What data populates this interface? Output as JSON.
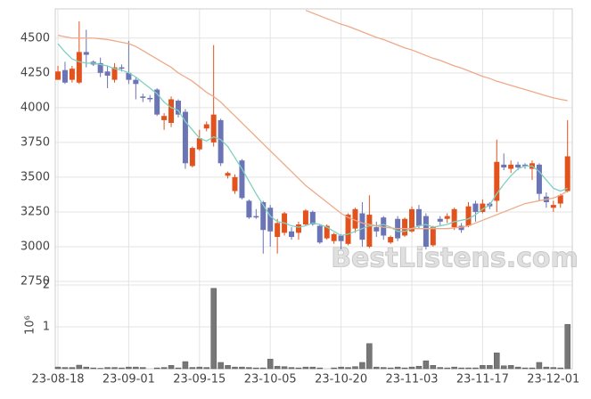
{
  "chart_data": {
    "type": "candlestick",
    "categories": [
      "23-08-18",
      null,
      null,
      null,
      null,
      null,
      null,
      null,
      null,
      null,
      "23-09-01",
      null,
      null,
      null,
      null,
      null,
      null,
      null,
      null,
      null,
      "23-09-15",
      null,
      null,
      null,
      null,
      null,
      null,
      null,
      null,
      null,
      "23-10-05",
      null,
      null,
      null,
      null,
      null,
      null,
      null,
      null,
      null,
      "23-10-20",
      null,
      null,
      null,
      null,
      null,
      null,
      null,
      null,
      null,
      "23-11-03",
      null,
      null,
      null,
      null,
      null,
      null,
      null,
      null,
      null,
      "23-11-17",
      null,
      null,
      null,
      null,
      null,
      null,
      null,
      null,
      null,
      "23-12-01",
      null,
      null
    ],
    "open": [
      4200,
      4270,
      4200,
      4180,
      4400,
      4330,
      4320,
      4260,
      4200,
      4290,
      4250,
      4200,
      4080,
      4070,
      4130,
      3910,
      3890,
      4050,
      3970,
      3580,
      3700,
      3850,
      3750,
      3910,
      3510,
      3400,
      3620,
      3330,
      3220,
      3320,
      3280,
      3070,
      3100,
      3110,
      3100,
      3160,
      3250,
      3150,
      3060,
      3040,
      3080,
      3020,
      3130,
      3240,
      3000,
      3140,
      3210,
      3030,
      3200,
      3080,
      3110,
      3270,
      3220,
      3010,
      3200,
      3200,
      3140,
      3150,
      3150,
      3310,
      3250,
      3310,
      3330,
      3590,
      3560,
      3590,
      3590,
      3560,
      3590,
      3360,
      3280,
      3310,
      3400
    ],
    "high": [
      4300,
      4330,
      4300,
      4620,
      4560,
      4340,
      4360,
      4300,
      4320,
      4310,
      4480,
      4220,
      4100,
      4090,
      4140,
      3960,
      4080,
      4060,
      3990,
      3720,
      3840,
      3900,
      4450,
      3920,
      3540,
      3520,
      3630,
      3340,
      3270,
      3330,
      3300,
      3200,
      3250,
      3140,
      3180,
      3270,
      3260,
      3160,
      3160,
      3100,
      3090,
      3240,
      3280,
      3320,
      3370,
      3180,
      3220,
      3080,
      3220,
      3210,
      3290,
      3300,
      3240,
      3150,
      3220,
      3240,
      3280,
      3170,
      3320,
      3330,
      3340,
      3320,
      3770,
      3670,
      3620,
      3610,
      3600,
      3620,
      3600,
      3390,
      3330,
      3380,
      3910
    ],
    "low": [
      4200,
      4170,
      4180,
      4170,
      4290,
      4300,
      4220,
      4140,
      4180,
      4260,
      4170,
      4060,
      4040,
      4040,
      3940,
      3840,
      3860,
      3930,
      3560,
      3570,
      3690,
      3830,
      3720,
      3580,
      3490,
      3380,
      3340,
      3200,
      3200,
      2950,
      3000,
      2950,
      3080,
      3050,
      3050,
      3150,
      3150,
      3020,
      3050,
      3020,
      2980,
      3010,
      3100,
      3000,
      2990,
      3070,
      3050,
      3020,
      3040,
      3070,
      3100,
      3130,
      2980,
      3000,
      3150,
      3170,
      3120,
      3100,
      3140,
      3180,
      3240,
      3270,
      3250,
      3550,
      3530,
      3550,
      3560,
      3480,
      3330,
      3280,
      3250,
      3280,
      3390
    ],
    "close": [
      4260,
      4180,
      4280,
      4400,
      4380,
      4310,
      4250,
      4230,
      4290,
      4280,
      4200,
      4170,
      4070,
      4060,
      3950,
      3940,
      4060,
      3950,
      3600,
      3710,
      3780,
      3880,
      3950,
      3600,
      3530,
      3500,
      3350,
      3210,
      3210,
      3120,
      3110,
      3170,
      3240,
      3070,
      3160,
      3260,
      3160,
      3030,
      3150,
      3090,
      3040,
      3230,
      3270,
      3050,
      3230,
      3110,
      3080,
      3070,
      3060,
      3200,
      3270,
      3150,
      3000,
      3140,
      3180,
      3220,
      3270,
      3120,
      3290,
      3250,
      3310,
      3290,
      3610,
      3570,
      3590,
      3570,
      3580,
      3600,
      3380,
      3320,
      3300,
      3370,
      3650
    ],
    "up_color": "#e2521d",
    "down_color": "#6b74b4",
    "lines": [
      {
        "color": "#7fd1c0",
        "values": [
          4460,
          4400,
          4350,
          4330,
          4320,
          4320,
          4310,
          4300,
          4280,
          4270,
          4250,
          4220,
          4180,
          4140,
          4100,
          4040,
          4000,
          3980,
          3900,
          3840,
          3780,
          3760,
          3790,
          3770,
          3720,
          3640,
          3560,
          3470,
          3380,
          3300,
          3220,
          3180,
          3170,
          3150,
          3140,
          3150,
          3170,
          3160,
          3140,
          3110,
          3080,
          3090,
          3110,
          3130,
          3150,
          3150,
          3160,
          3140,
          3110,
          3110,
          3130,
          3150,
          3160,
          3140,
          3150,
          3160,
          3180,
          3190,
          3200,
          3230,
          3270,
          3300,
          3380,
          3450,
          3510,
          3560,
          3580,
          3580,
          3540,
          3480,
          3420,
          3400,
          3420
        ]
      },
      {
        "color": "#eeaa88",
        "values": [
          4520,
          4510,
          4500,
          4500,
          4500,
          4500,
          4495,
          4490,
          4480,
          4470,
          4460,
          4440,
          4410,
          4380,
          4350,
          4320,
          4290,
          4250,
          4220,
          4190,
          4150,
          4110,
          4080,
          4040,
          3990,
          3940,
          3890,
          3840,
          3790,
          3740,
          3690,
          3640,
          3590,
          3540,
          3490,
          3440,
          3400,
          3360,
          3320,
          3280,
          3240,
          3210,
          3190,
          3170,
          3160,
          3150,
          3140,
          3135,
          3130,
          3130,
          3130,
          3130,
          3130,
          3130,
          3130,
          3130,
          3135,
          3140,
          3150,
          3170,
          3190,
          3210,
          3230,
          3250,
          3270,
          3290,
          3310,
          3320,
          3330,
          3340,
          3350,
          3370,
          3400
        ]
      },
      {
        "color": "#eeaa88",
        "values": [
          null,
          null,
          null,
          null,
          null,
          null,
          null,
          null,
          null,
          null,
          null,
          null,
          null,
          null,
          null,
          null,
          null,
          null,
          null,
          null,
          null,
          null,
          null,
          null,
          null,
          null,
          null,
          null,
          null,
          null,
          null,
          null,
          null,
          null,
          null,
          4700,
          4680,
          4660,
          4640,
          4620,
          4600,
          4585,
          4565,
          4545,
          4525,
          4505,
          4490,
          4470,
          4450,
          4430,
          4415,
          4395,
          4375,
          4355,
          4340,
          4320,
          4300,
          4285,
          4265,
          4245,
          4225,
          4210,
          4190,
          4175,
          4160,
          4145,
          4130,
          4115,
          4100,
          4085,
          4070,
          4060,
          4050
        ]
      }
    ],
    "ylim": [
      2750,
      4710
    ],
    "yticks": [
      2750,
      3000,
      3250,
      3500,
      3750,
      4000,
      4250,
      4500
    ],
    "grid": true,
    "watermark": "BestListens.com",
    "volume": {
      "color": "#777777",
      "ylabel": "10⁶",
      "ylim": [
        0,
        2085000
      ],
      "yticks": [
        {
          "value": 1000000,
          "label": "1"
        },
        {
          "value": 2000000,
          "label": "2"
        }
      ],
      "values": [
        40000,
        30000,
        30000,
        85000,
        40000,
        20000,
        10000,
        30000,
        30000,
        20000,
        40000,
        40000,
        30000,
        0,
        20000,
        30000,
        80000,
        20000,
        170000,
        30000,
        40000,
        30000,
        1920000,
        150000,
        80000,
        40000,
        40000,
        30000,
        20000,
        20000,
        230000,
        60000,
        50000,
        30000,
        20000,
        40000,
        40000,
        20000,
        0,
        20000,
        40000,
        30000,
        50000,
        150000,
        600000,
        40000,
        30000,
        20000,
        40000,
        20000,
        40000,
        60000,
        190000,
        80000,
        30000,
        20000,
        40000,
        20000,
        20000,
        20000,
        80000,
        80000,
        380000,
        70000,
        80000,
        40000,
        20000,
        20000,
        150000,
        40000,
        30000,
        20000,
        1060000
      ]
    }
  }
}
